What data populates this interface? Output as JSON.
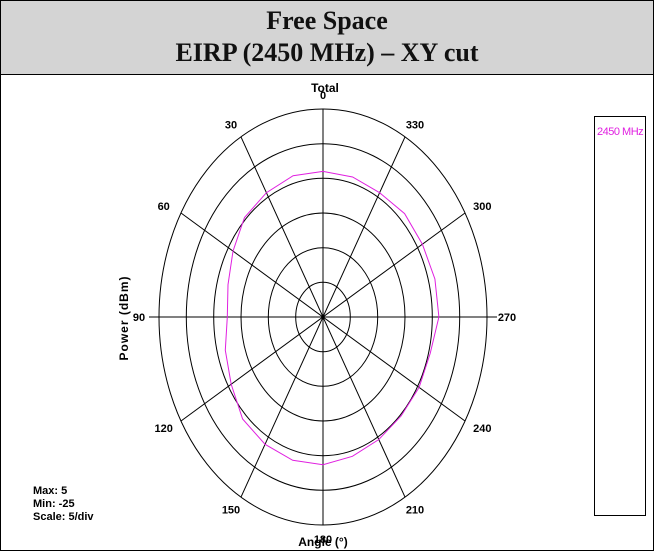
{
  "header": {
    "line1": "Free Space",
    "line2": "EIRP (2450 MHz) – XY cut"
  },
  "colors": {
    "header_bg": "#d4d4d4",
    "trace": "#e020e0",
    "grid": "#000000"
  },
  "chart_data": {
    "type": "polar",
    "title": "Total",
    "xlabel": "Angle (°)",
    "ylabel": "Power (dBm)",
    "angular_ticks": [
      "0",
      "30",
      "60",
      "90",
      "120",
      "150",
      "180",
      "210",
      "240",
      "270",
      "300",
      "330"
    ],
    "angle_direction": "counter-clockwise, 0 at top",
    "radial_range": [
      -25,
      5
    ],
    "radial_scale": "5/div",
    "legend_position": "right",
    "series": [
      {
        "name": "2450 MHz",
        "angles": [
          0,
          15,
          30,
          45,
          60,
          75,
          90,
          105,
          120,
          135,
          150,
          165,
          180,
          195,
          210,
          225,
          240,
          255,
          270,
          285,
          300,
          315,
          330,
          345
        ],
        "values": [
          -4.0,
          -3.9,
          -4.3,
          -4.7,
          -6.0,
          -7.0,
          -7.5,
          -6.5,
          -5.6,
          -4.2,
          -3.8,
          -3.6,
          -3.7,
          -4.2,
          -4.6,
          -4.8,
          -4.7,
          -4.7,
          -3.8,
          -3.8,
          -4.0,
          -3.9,
          -4.3,
          -4.1
        ]
      }
    ]
  },
  "stats": {
    "max": "Max: 5",
    "min": "Min: -25",
    "scale": "Scale: 5/div"
  }
}
